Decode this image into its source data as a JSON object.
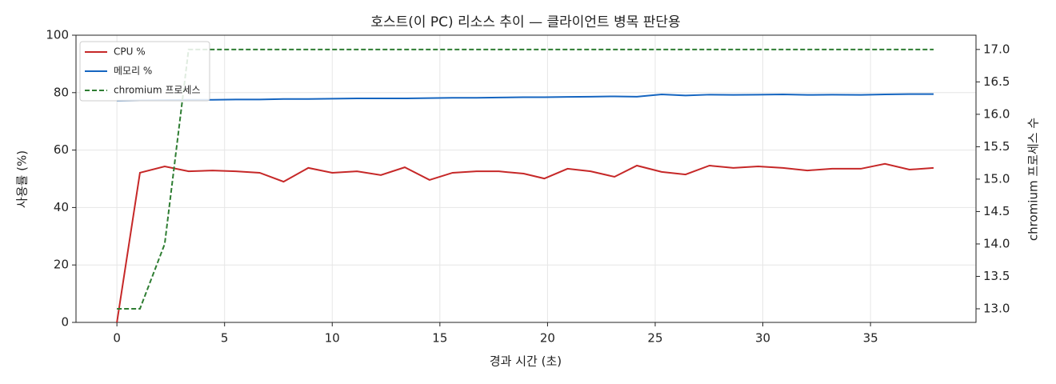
{
  "chart_data": {
    "type": "line",
    "title": "호스트(이 PC) 리소스 추이 — 클라이언트 병목 판단용",
    "xlabel": "경과 시간 (초)",
    "ylabel": "사용률 (%)",
    "y2label": "chromium 프로세스 수",
    "x": [
      0,
      1.07,
      2.22,
      3.33,
      4.44,
      5.52,
      6.63,
      7.74,
      8.89,
      10.0,
      11.15,
      12.26,
      13.37,
      14.52,
      15.59,
      16.7,
      17.74,
      18.89,
      19.85,
      20.93,
      22.0,
      23.11,
      24.15,
      25.3,
      26.41,
      27.52,
      28.63,
      29.78,
      30.93,
      32.07,
      33.22,
      34.55,
      35.67,
      36.81,
      37.93
    ],
    "series": [
      {
        "name": "CPU %",
        "color": "#c62828",
        "values": [
          0,
          52.1,
          54.3,
          52.6,
          52.9,
          52.6,
          52.1,
          49.0,
          53.8,
          52.1,
          52.6,
          51.3,
          54.0,
          49.6,
          52.1,
          52.6,
          52.6,
          51.8,
          50.1,
          53.5,
          52.6,
          50.7,
          54.6,
          52.4,
          51.5,
          54.6,
          53.8,
          54.3,
          53.8,
          52.9,
          53.5,
          53.5,
          55.2,
          53.2,
          53.8
        ]
      },
      {
        "name": "메모리 %",
        "color": "#1565c0",
        "values": [
          77.2,
          77.3,
          77.4,
          77.5,
          77.5,
          77.6,
          77.6,
          77.8,
          77.8,
          77.9,
          78.0,
          78.0,
          78.0,
          78.1,
          78.2,
          78.2,
          78.3,
          78.4,
          78.4,
          78.5,
          78.6,
          78.7,
          78.6,
          79.4,
          79.0,
          79.3,
          79.2,
          79.3,
          79.4,
          79.2,
          79.3,
          79.2,
          79.4,
          79.5,
          79.5
        ]
      },
      {
        "name": "chromium 프로세스",
        "color": "#2e7d32",
        "dashed": true,
        "axis": "y2",
        "values": [
          13,
          13,
          14,
          17,
          17,
          17,
          17,
          17,
          17,
          17,
          17,
          17,
          17,
          17,
          17,
          17,
          17,
          17,
          17,
          17,
          17,
          17,
          17,
          17,
          17,
          17,
          17,
          17,
          17,
          17,
          17,
          17,
          17,
          17,
          17
        ]
      }
    ],
    "xlim": [
      -1.9,
      39.9
    ],
    "xticks": [
      0,
      5,
      10,
      15,
      20,
      25,
      30,
      35
    ],
    "ylim": [
      0,
      100
    ],
    "yticks": [
      0,
      20,
      40,
      60,
      80,
      100
    ],
    "y2lim": [
      12.79,
      17.22
    ],
    "y2ticks": [
      {
        "value": 13,
        "label": "13.0"
      },
      13.5,
      {
        "value": 14,
        "label": "14.0"
      },
      14.5,
      {
        "value": 15,
        "label": "15.0"
      },
      15.5,
      {
        "value": 16,
        "label": "16.0"
      },
      16.5,
      {
        "value": 17,
        "label": "17.0"
      }
    ],
    "grid": true,
    "legend": "upper left"
  }
}
